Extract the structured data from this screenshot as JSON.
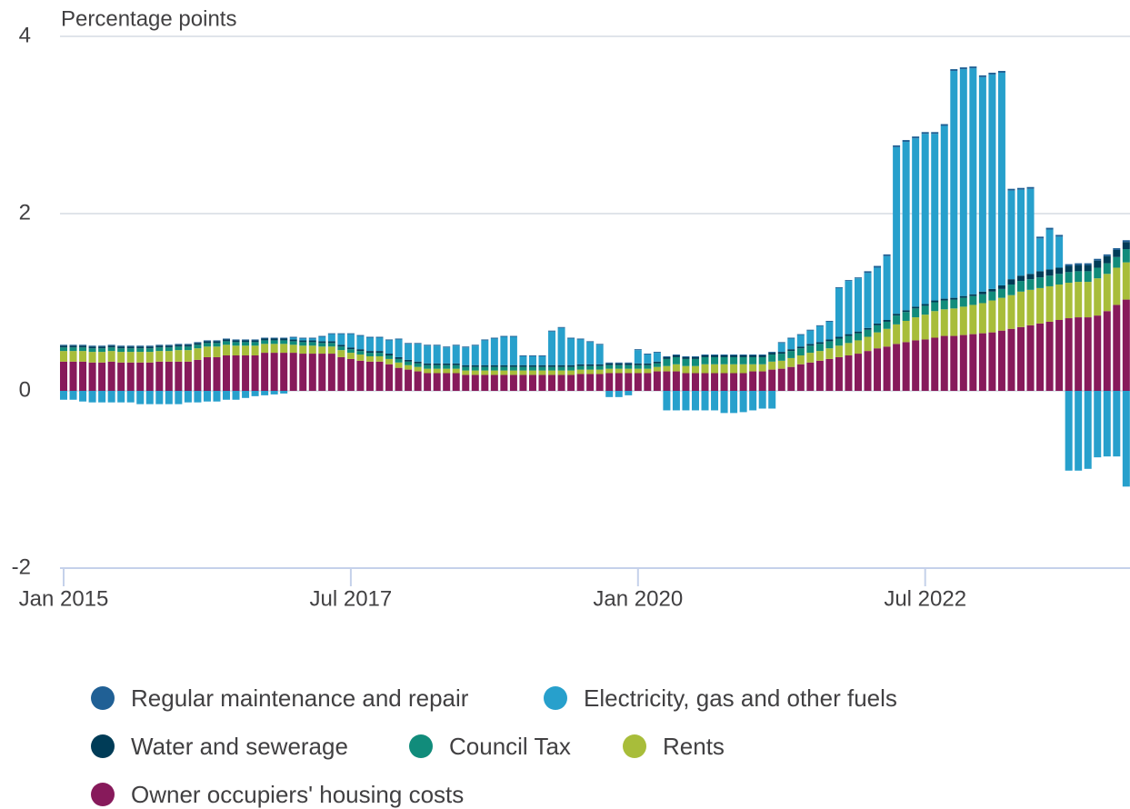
{
  "chart_data": {
    "type": "stacked-bar",
    "y_axis_label": "Percentage points",
    "x": [
      "2015-01",
      "2015-02",
      "2015-03",
      "2015-04",
      "2015-05",
      "2015-06",
      "2015-07",
      "2015-08",
      "2015-09",
      "2015-10",
      "2015-11",
      "2015-12",
      "2016-01",
      "2016-02",
      "2016-03",
      "2016-04",
      "2016-05",
      "2016-06",
      "2016-07",
      "2016-08",
      "2016-09",
      "2016-10",
      "2016-11",
      "2016-12",
      "2017-01",
      "2017-02",
      "2017-03",
      "2017-04",
      "2017-05",
      "2017-06",
      "2017-07",
      "2017-08",
      "2017-09",
      "2017-10",
      "2017-11",
      "2017-12",
      "2018-01",
      "2018-02",
      "2018-03",
      "2018-04",
      "2018-05",
      "2018-06",
      "2018-07",
      "2018-08",
      "2018-09",
      "2018-10",
      "2018-11",
      "2018-12",
      "2019-01",
      "2019-02",
      "2019-03",
      "2019-04",
      "2019-05",
      "2019-06",
      "2019-07",
      "2019-08",
      "2019-09",
      "2019-10",
      "2019-11",
      "2019-12",
      "2020-01",
      "2020-02",
      "2020-03",
      "2020-04",
      "2020-05",
      "2020-06",
      "2020-07",
      "2020-08",
      "2020-09",
      "2020-10",
      "2020-11",
      "2020-12",
      "2021-01",
      "2021-02",
      "2021-03",
      "2021-04",
      "2021-05",
      "2021-06",
      "2021-07",
      "2021-08",
      "2021-09",
      "2021-10",
      "2021-11",
      "2021-12",
      "2022-01",
      "2022-02",
      "2022-03",
      "2022-04",
      "2022-05",
      "2022-06",
      "2022-07",
      "2022-08",
      "2022-09",
      "2022-10",
      "2022-11",
      "2022-12",
      "2023-01",
      "2023-02",
      "2023-03",
      "2023-04",
      "2023-05",
      "2023-06",
      "2023-07",
      "2023-08",
      "2023-09",
      "2023-10",
      "2023-11",
      "2023-12",
      "2024-01",
      "2024-02",
      "2024-03",
      "2024-04"
    ],
    "xticks": [
      {
        "value": "2015-01",
        "label": "Jan 2015"
      },
      {
        "value": "2017-07",
        "label": "Jul 2017"
      },
      {
        "value": "2020-01",
        "label": "Jan 2020"
      },
      {
        "value": "2022-07",
        "label": "Jul 2022"
      }
    ],
    "ylim": [
      -2,
      4
    ],
    "yticks": [
      -2,
      0,
      2,
      4
    ],
    "grid": true,
    "legend": "bottom",
    "series": [
      {
        "name": "Regular maintenance and repair",
        "color": "#206095",
        "values": [
          0.01,
          0.01,
          0.01,
          0.01,
          0.01,
          0.01,
          0.01,
          0.01,
          0.01,
          0.01,
          0.01,
          0.01,
          0.01,
          0.01,
          0.01,
          0.01,
          0.01,
          0.01,
          0.01,
          0.01,
          0.01,
          0.01,
          0.01,
          0.01,
          0.01,
          0.01,
          0.01,
          0.01,
          0.01,
          0.01,
          0.01,
          0.01,
          0.01,
          0.01,
          0.01,
          0.01,
          0.01,
          0.01,
          0.01,
          0.01,
          0.01,
          0.01,
          0.01,
          0.01,
          0.01,
          0.01,
          0.01,
          0.01,
          0.01,
          0.01,
          0.01,
          0.01,
          0.01,
          0.01,
          0.01,
          0.01,
          0.01,
          0.01,
          0.01,
          0.01,
          0.01,
          0.01,
          0.01,
          0.01,
          0.01,
          0.01,
          0.01,
          0.01,
          0.01,
          0.01,
          0.01,
          0.01,
          0.01,
          0.01,
          0.01,
          0.01,
          0.01,
          0.01,
          0.01,
          0.01,
          0.01,
          0.01,
          0.01,
          0.01,
          0.02,
          0.02,
          0.02,
          0.02,
          0.02,
          0.02,
          0.02,
          0.02,
          0.02,
          0.02,
          0.02,
          0.02,
          0.02,
          0.02,
          0.02,
          0.02,
          0.02,
          0.02,
          0.02,
          0.02,
          0.02,
          0.02,
          0.02,
          0.02,
          0.02,
          0.02,
          0.02,
          0.02
        ]
      },
      {
        "name": "Electricity, gas and other fuels",
        "color": "#27a0cc",
        "values": [
          -0.1,
          -0.1,
          -0.12,
          -0.13,
          -0.13,
          -0.13,
          -0.13,
          -0.13,
          -0.15,
          -0.15,
          -0.15,
          -0.15,
          -0.15,
          -0.13,
          -0.13,
          -0.12,
          -0.12,
          -0.1,
          -0.1,
          -0.08,
          -0.06,
          -0.05,
          -0.04,
          -0.03,
          0.02,
          0.02,
          0.02,
          0.05,
          0.08,
          0.12,
          0.15,
          0.15,
          0.15,
          0.15,
          0.15,
          0.2,
          0.18,
          0.2,
          0.2,
          0.2,
          0.18,
          0.2,
          0.2,
          0.22,
          0.28,
          0.3,
          0.32,
          0.32,
          0.1,
          0.1,
          0.1,
          0.38,
          0.42,
          0.3,
          0.28,
          0.25,
          0.22,
          -0.07,
          -0.07,
          -0.05,
          0.15,
          0.1,
          0.1,
          -0.22,
          -0.22,
          -0.22,
          -0.22,
          -0.22,
          -0.22,
          -0.25,
          -0.25,
          -0.24,
          -0.22,
          -0.2,
          -0.2,
          0.1,
          0.12,
          0.13,
          0.15,
          0.18,
          0.2,
          0.55,
          0.6,
          0.6,
          0.62,
          0.63,
          0.72,
          1.88,
          1.9,
          1.9,
          1.92,
          1.88,
          1.95,
          2.56,
          2.56,
          2.55,
          2.42,
          2.42,
          2.4,
          1.0,
          0.97,
          0.96,
          0.37,
          0.45,
          0.35,
          -0.9,
          -0.9,
          -0.88,
          -0.75,
          -0.74,
          -0.74,
          -1.08
        ]
      },
      {
        "name": "Water and sewerage",
        "color": "#003c57",
        "values": [
          0.02,
          0.02,
          0.02,
          0.02,
          0.02,
          0.02,
          0.02,
          0.02,
          0.02,
          0.02,
          0.02,
          0.02,
          0.02,
          0.02,
          0.02,
          0.02,
          0.02,
          0.02,
          0.02,
          0.02,
          0.02,
          0.02,
          0.02,
          0.02,
          0.02,
          0.02,
          0.02,
          0.02,
          0.02,
          0.02,
          0.02,
          0.02,
          0.02,
          0.02,
          0.02,
          0.02,
          0.02,
          0.02,
          0.02,
          0.02,
          0.02,
          0.02,
          0.02,
          0.02,
          0.02,
          0.02,
          0.02,
          0.02,
          0.02,
          0.02,
          0.02,
          0.02,
          0.02,
          0.02,
          0.02,
          0.02,
          0.02,
          0.02,
          0.02,
          0.02,
          0.02,
          0.02,
          0.02,
          0.02,
          0.02,
          0.02,
          0.02,
          0.02,
          0.02,
          0.02,
          0.02,
          0.02,
          0.02,
          0.02,
          0.02,
          0.02,
          0.02,
          0.02,
          0.02,
          0.02,
          0.02,
          0.02,
          0.02,
          0.02,
          0.02,
          0.02,
          0.02,
          0.02,
          0.02,
          0.02,
          0.02,
          0.02,
          0.02,
          0.02,
          0.02,
          0.02,
          0.03,
          0.03,
          0.04,
          0.06,
          0.06,
          0.06,
          0.07,
          0.07,
          0.07,
          0.07,
          0.07,
          0.07,
          0.08,
          0.08,
          0.08,
          0.08
        ]
      },
      {
        "name": "Council Tax",
        "color": "#118c7b",
        "values": [
          0.04,
          0.04,
          0.04,
          0.04,
          0.04,
          0.04,
          0.04,
          0.04,
          0.04,
          0.04,
          0.04,
          0.04,
          0.04,
          0.04,
          0.04,
          0.04,
          0.04,
          0.04,
          0.04,
          0.04,
          0.04,
          0.04,
          0.04,
          0.04,
          0.04,
          0.04,
          0.04,
          0.04,
          0.04,
          0.04,
          0.04,
          0.04,
          0.04,
          0.04,
          0.04,
          0.04,
          0.04,
          0.04,
          0.04,
          0.04,
          0.04,
          0.04,
          0.04,
          0.04,
          0.04,
          0.04,
          0.04,
          0.04,
          0.04,
          0.04,
          0.04,
          0.04,
          0.04,
          0.04,
          0.04,
          0.04,
          0.04,
          0.04,
          0.04,
          0.04,
          0.04,
          0.04,
          0.04,
          0.08,
          0.08,
          0.08,
          0.08,
          0.08,
          0.08,
          0.08,
          0.08,
          0.08,
          0.08,
          0.08,
          0.08,
          0.08,
          0.08,
          0.08,
          0.08,
          0.08,
          0.08,
          0.08,
          0.08,
          0.08,
          0.08,
          0.08,
          0.08,
          0.1,
          0.1,
          0.1,
          0.1,
          0.1,
          0.1,
          0.1,
          0.1,
          0.1,
          0.1,
          0.1,
          0.1,
          0.12,
          0.12,
          0.12,
          0.12,
          0.12,
          0.12,
          0.12,
          0.12,
          0.12,
          0.12,
          0.12,
          0.12,
          0.15
        ]
      },
      {
        "name": "Rents",
        "color": "#a8bd3a",
        "values": [
          0.12,
          0.12,
          0.12,
          0.12,
          0.12,
          0.12,
          0.12,
          0.12,
          0.12,
          0.12,
          0.12,
          0.12,
          0.13,
          0.13,
          0.13,
          0.12,
          0.12,
          0.12,
          0.11,
          0.11,
          0.11,
          0.1,
          0.1,
          0.1,
          0.09,
          0.09,
          0.09,
          0.08,
          0.08,
          0.08,
          0.07,
          0.07,
          0.06,
          0.06,
          0.06,
          0.06,
          0.05,
          0.05,
          0.05,
          0.05,
          0.05,
          0.05,
          0.05,
          0.05,
          0.05,
          0.05,
          0.05,
          0.05,
          0.05,
          0.05,
          0.05,
          0.05,
          0.05,
          0.05,
          0.05,
          0.05,
          0.05,
          0.05,
          0.05,
          0.05,
          0.05,
          0.05,
          0.05,
          0.06,
          0.08,
          0.08,
          0.08,
          0.1,
          0.1,
          0.1,
          0.1,
          0.1,
          0.08,
          0.08,
          0.09,
          0.09,
          0.1,
          0.1,
          0.11,
          0.11,
          0.12,
          0.13,
          0.14,
          0.15,
          0.16,
          0.18,
          0.2,
          0.22,
          0.24,
          0.26,
          0.28,
          0.3,
          0.3,
          0.31,
          0.32,
          0.33,
          0.34,
          0.36,
          0.37,
          0.38,
          0.4,
          0.4,
          0.4,
          0.4,
          0.4,
          0.4,
          0.4,
          0.4,
          0.42,
          0.42,
          0.42,
          0.42
        ]
      },
      {
        "name": "Owner occupiers' housing costs",
        "color": "#871a5b",
        "values": [
          0.33,
          0.33,
          0.33,
          0.32,
          0.32,
          0.33,
          0.32,
          0.32,
          0.32,
          0.32,
          0.33,
          0.33,
          0.33,
          0.33,
          0.35,
          0.38,
          0.38,
          0.4,
          0.4,
          0.4,
          0.4,
          0.43,
          0.43,
          0.43,
          0.43,
          0.42,
          0.42,
          0.42,
          0.42,
          0.38,
          0.36,
          0.34,
          0.33,
          0.33,
          0.3,
          0.26,
          0.24,
          0.22,
          0.2,
          0.2,
          0.2,
          0.2,
          0.18,
          0.18,
          0.18,
          0.18,
          0.18,
          0.18,
          0.18,
          0.18,
          0.18,
          0.18,
          0.18,
          0.18,
          0.19,
          0.19,
          0.19,
          0.2,
          0.2,
          0.2,
          0.2,
          0.2,
          0.22,
          0.22,
          0.22,
          0.2,
          0.2,
          0.2,
          0.2,
          0.2,
          0.2,
          0.2,
          0.22,
          0.22,
          0.24,
          0.25,
          0.27,
          0.3,
          0.32,
          0.34,
          0.36,
          0.38,
          0.4,
          0.42,
          0.45,
          0.48,
          0.5,
          0.53,
          0.55,
          0.57,
          0.58,
          0.6,
          0.62,
          0.62,
          0.63,
          0.64,
          0.65,
          0.66,
          0.68,
          0.7,
          0.72,
          0.74,
          0.76,
          0.78,
          0.8,
          0.82,
          0.83,
          0.83,
          0.85,
          0.9,
          0.97,
          1.03
        ]
      }
    ]
  }
}
